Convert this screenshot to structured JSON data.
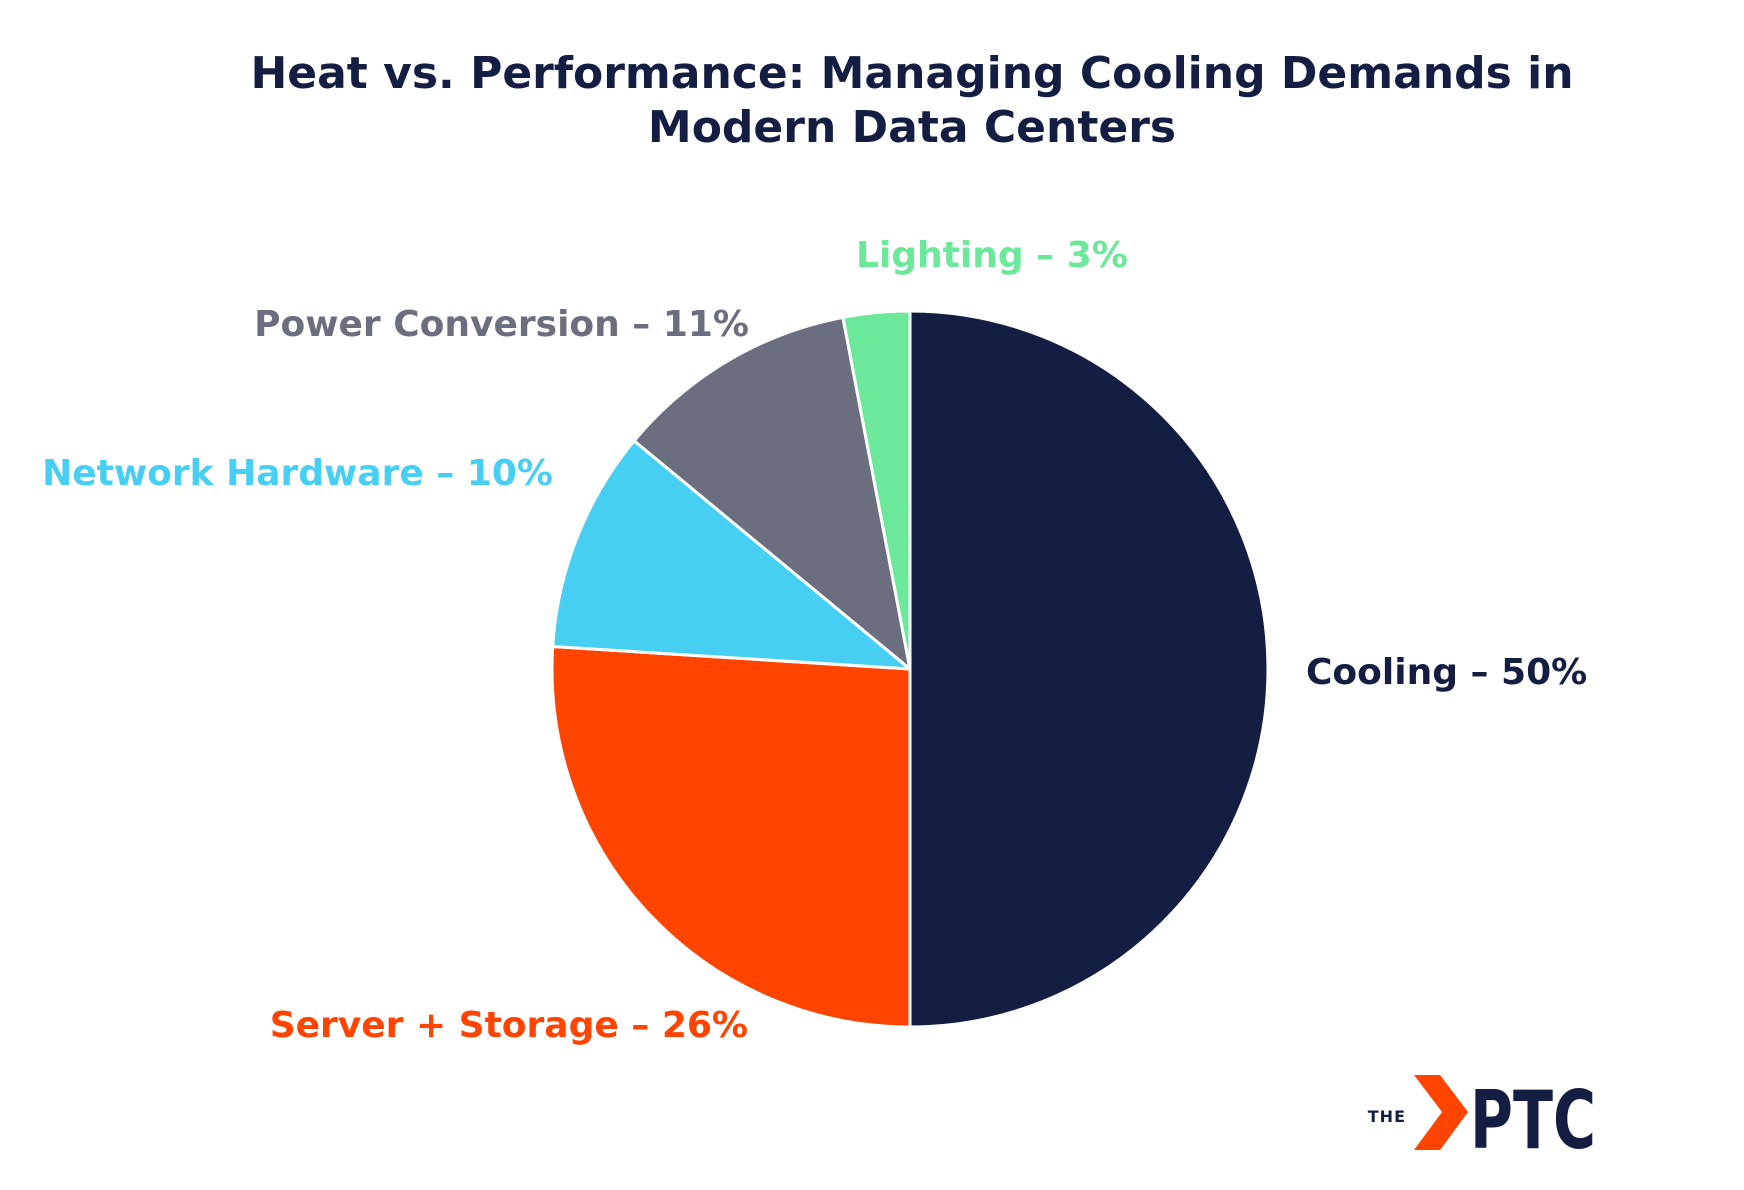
{
  "chart_data": {
    "type": "pie",
    "title_lines": [
      "Heat vs. Performance: Managing Cooling Demands in",
      "Modern Data Centers"
    ],
    "slices": [
      {
        "name": "Cooling",
        "value": 50,
        "label": "Cooling – 50%",
        "color": "#131e42"
      },
      {
        "name": "Server + Storage",
        "value": 26,
        "label": "Server + Storage – 26%",
        "color": "#ff4400"
      },
      {
        "name": "Network Hardware",
        "value": 10,
        "label": "Network Hardware – 10%",
        "color": "#47cff3"
      },
      {
        "name": "Power Conversion",
        "value": 11,
        "label": "Power Conversion – 11%",
        "color": "#6b6e7f"
      },
      {
        "name": "Lighting",
        "value": 3,
        "label": "Lighting – 3%",
        "color": "#6ce89a"
      }
    ],
    "start_angle": "12 o'clock",
    "direction": "clockwise"
  },
  "logo": {
    "prefix": "THE",
    "name": "PTC",
    "accent_color": "#ff4400",
    "text_color": "#131e42"
  }
}
